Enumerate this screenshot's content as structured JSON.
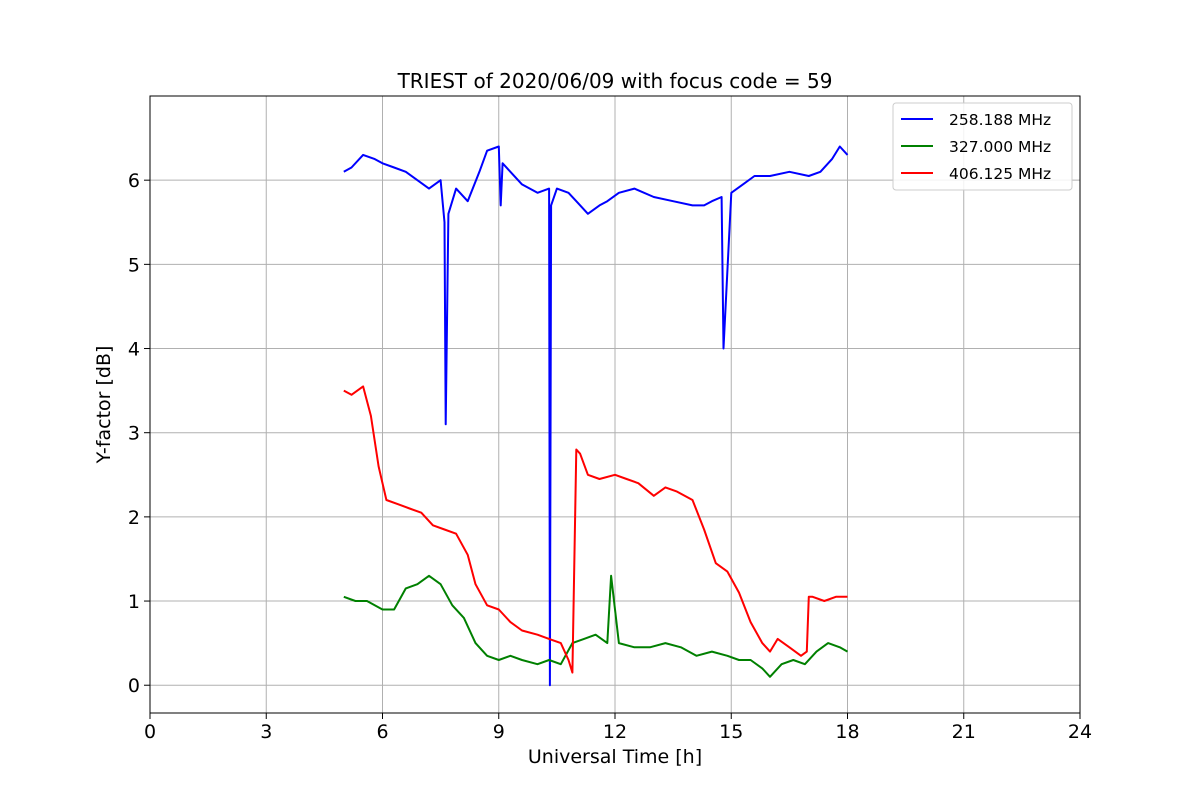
{
  "chart_data": {
    "type": "line",
    "title": "TRIEST of 2020/06/09 with focus code = 59",
    "xlabel": "Universal Time [h]",
    "ylabel": "Y-factor [dB]",
    "xlim": [
      0,
      24
    ],
    "ylim": [
      -0.33,
      7.0
    ],
    "xticks": [
      0,
      3,
      6,
      9,
      12,
      15,
      18,
      21,
      24
    ],
    "yticks": [
      0,
      1,
      2,
      3,
      4,
      5,
      6
    ],
    "grid": true,
    "legend_position": "top-right",
    "series": [
      {
        "name": "258.188 MHz",
        "color": "#0000ff",
        "x": [
          5.0,
          5.2,
          5.5,
          5.8,
          6.0,
          6.3,
          6.6,
          6.9,
          7.2,
          7.5,
          7.6,
          7.63,
          7.7,
          7.9,
          8.2,
          8.5,
          8.7,
          9.0,
          9.05,
          9.1,
          9.3,
          9.6,
          10.0,
          10.3,
          10.32,
          10.35,
          10.5,
          10.8,
          11.0,
          11.3,
          11.6,
          11.8,
          12.1,
          12.5,
          13.0,
          13.5,
          14.0,
          14.3,
          14.5,
          14.75,
          14.8,
          15.0,
          15.3,
          15.6,
          16.0,
          16.5,
          17.0,
          17.3,
          17.6,
          17.8,
          18.0
        ],
        "y": [
          6.1,
          6.15,
          6.3,
          6.25,
          6.2,
          6.15,
          6.1,
          6.0,
          5.9,
          6.0,
          5.5,
          3.1,
          5.6,
          5.9,
          5.75,
          6.1,
          6.35,
          6.4,
          5.7,
          6.2,
          6.1,
          5.95,
          5.85,
          5.9,
          0.0,
          5.7,
          5.9,
          5.85,
          5.75,
          5.6,
          5.7,
          5.75,
          5.85,
          5.9,
          5.8,
          5.75,
          5.7,
          5.7,
          5.75,
          5.8,
          4.0,
          5.85,
          5.95,
          6.05,
          6.05,
          6.1,
          6.05,
          6.1,
          6.25,
          6.4,
          6.3
        ]
      },
      {
        "name": "327.000 MHz",
        "color": "#008000",
        "x": [
          5.0,
          5.3,
          5.6,
          6.0,
          6.3,
          6.6,
          6.9,
          7.2,
          7.5,
          7.8,
          8.1,
          8.4,
          8.7,
          9.0,
          9.3,
          9.6,
          10.0,
          10.3,
          10.6,
          10.9,
          11.2,
          11.5,
          11.8,
          11.9,
          12.1,
          12.5,
          12.9,
          13.3,
          13.7,
          14.1,
          14.5,
          14.9,
          15.2,
          15.5,
          15.8,
          16.0,
          16.3,
          16.6,
          16.9,
          17.2,
          17.5,
          17.8,
          18.0
        ],
        "y": [
          1.05,
          1.0,
          1.0,
          0.9,
          0.9,
          1.15,
          1.2,
          1.3,
          1.2,
          0.95,
          0.8,
          0.5,
          0.35,
          0.3,
          0.35,
          0.3,
          0.25,
          0.3,
          0.25,
          0.5,
          0.55,
          0.6,
          0.5,
          1.3,
          0.5,
          0.45,
          0.45,
          0.5,
          0.45,
          0.35,
          0.4,
          0.35,
          0.3,
          0.3,
          0.2,
          0.1,
          0.25,
          0.3,
          0.25,
          0.4,
          0.5,
          0.45,
          0.4
        ]
      },
      {
        "name": "406.125 MHz",
        "color": "#ff0000",
        "x": [
          5.0,
          5.2,
          5.5,
          5.7,
          5.9,
          6.1,
          6.4,
          6.7,
          7.0,
          7.3,
          7.6,
          7.9,
          8.2,
          8.4,
          8.7,
          9.0,
          9.3,
          9.6,
          10.0,
          10.3,
          10.6,
          10.8,
          10.9,
          11.0,
          11.1,
          11.3,
          11.6,
          12.0,
          12.3,
          12.6,
          13.0,
          13.3,
          13.6,
          14.0,
          14.3,
          14.6,
          14.9,
          15.2,
          15.5,
          15.8,
          16.0,
          16.2,
          16.5,
          16.8,
          16.95,
          17.0,
          17.1,
          17.4,
          17.7,
          18.0
        ],
        "y": [
          3.5,
          3.45,
          3.55,
          3.2,
          2.6,
          2.2,
          2.15,
          2.1,
          2.05,
          1.9,
          1.85,
          1.8,
          1.55,
          1.2,
          0.95,
          0.9,
          0.75,
          0.65,
          0.6,
          0.55,
          0.5,
          0.3,
          0.15,
          2.8,
          2.75,
          2.5,
          2.45,
          2.5,
          2.45,
          2.4,
          2.25,
          2.35,
          2.3,
          2.2,
          1.85,
          1.45,
          1.35,
          1.1,
          0.75,
          0.5,
          0.4,
          0.55,
          0.45,
          0.35,
          0.4,
          1.05,
          1.05,
          1.0,
          1.05,
          1.05
        ]
      }
    ]
  }
}
